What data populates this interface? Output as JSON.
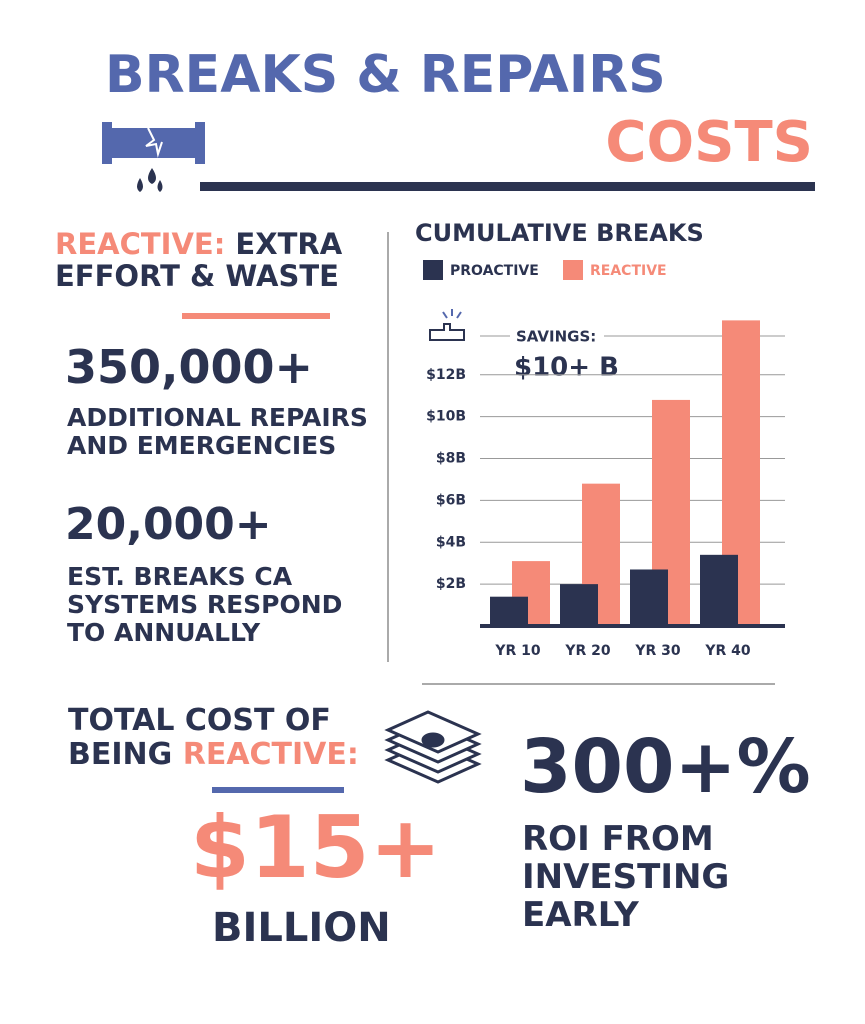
{
  "header": {
    "title": "BREAKS & REPAIRS",
    "subtitle": "COSTS"
  },
  "reactive": {
    "label": "REACTIVE:",
    "heading": "EXTRA EFFORT & WASTE"
  },
  "stats": [
    {
      "value": "350,000+",
      "label": "ADDITIONAL REPAIRS AND EMERGENCIES"
    },
    {
      "value": "20,000+",
      "label": "EST. BREAKS CA SYSTEMS RESPOND TO ANNUALLY"
    }
  ],
  "total": {
    "heading": "TOTAL COST OF BEING",
    "highlight": "REACTIVE:",
    "amount": "$15+",
    "unit": "BILLION"
  },
  "roi": {
    "value": "300+%",
    "label": "ROI FROM INVESTING EARLY"
  },
  "chart_data": {
    "type": "bar",
    "title": "CUMULATIVE BREAKS",
    "categories": [
      "YR 10",
      "YR 20",
      "YR 30",
      "YR 40"
    ],
    "series": [
      {
        "name": "PROACTIVE",
        "color": "#2b3350",
        "values": [
          1.4,
          2.0,
          2.7,
          3.4
        ]
      },
      {
        "name": "REACTIVE",
        "color": "#f58a78",
        "values": [
          3.1,
          6.8,
          10.8,
          14.6
        ]
      }
    ],
    "ylim": [
      0,
      15
    ],
    "yticks": [
      {
        "value": 2,
        "label": "$2B"
      },
      {
        "value": 4,
        "label": "$4B"
      },
      {
        "value": 6,
        "label": "$6B"
      },
      {
        "value": 8,
        "label": "$8B"
      },
      {
        "value": 10,
        "label": "$10B"
      },
      {
        "value": 12,
        "label": "$12B"
      }
    ],
    "grid": true,
    "annotation": "SAVINGS:",
    "annotation_value": "$10+ B"
  }
}
